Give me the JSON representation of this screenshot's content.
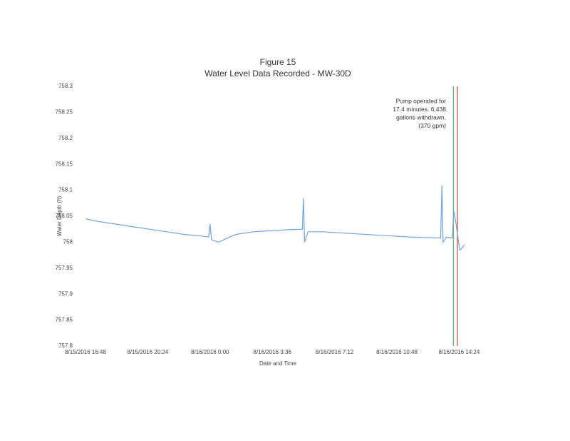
{
  "chart_data": {
    "type": "line",
    "title": "Figure 15",
    "subtitle": "Water Level Data Recorded - MW-30D",
    "x_label": "Date and Time",
    "y_label": "Water Depth (ft)",
    "annotation": [
      "Pump operated for",
      "17.4 minutes.  6,438",
      "gallons withdrawn.",
      "(370 gpm)"
    ],
    "x": [
      "8/15/2016 16:48",
      "8/15/2016 17:30",
      "8/15/2016 18:30",
      "8/15/2016 19:30",
      "8/15/2016 20:30",
      "8/15/2016 21:30",
      "8/15/2016 22:30",
      "8/15/2016 23:30",
      "8/15/2016 23:55",
      "8/16/2016 0:00",
      "8/16/2016 0:05",
      "8/16/2016 0:30",
      "8/16/2016 1:00",
      "8/16/2016 1:30",
      "8/16/2016 2:30",
      "8/16/2016 3:30",
      "8/16/2016 4:30",
      "8/16/2016 5:20",
      "8/16/2016 5:24",
      "8/16/2016 5:28",
      "8/16/2016 5:40",
      "8/16/2016 6:30",
      "8/16/2016 7:30",
      "8/16/2016 8:30",
      "8/16/2016 9:30",
      "8/16/2016 10:30",
      "8/16/2016 11:30",
      "8/16/2016 12:30",
      "8/16/2016 13:20",
      "8/16/2016 13:24",
      "8/16/2016 13:28",
      "8/16/2016 13:40",
      "8/16/2016 14:00",
      "8/16/2016 14:06",
      "8/16/2016 14:12",
      "8/16/2016 14:26",
      "8/16/2016 14:36",
      "8/16/2016 14:43"
    ],
    "series": [
      {
        "name": "Water Depth",
        "color": "#6fa3dc",
        "values": [
          758.045,
          758.04,
          758.035,
          758.03,
          758.025,
          758.02,
          758.015,
          758.012,
          758.01,
          758.035,
          758.005,
          758.0,
          758.008,
          758.015,
          758.02,
          758.022,
          758.024,
          758.025,
          758.085,
          758.0,
          758.02,
          758.02,
          758.018,
          758.016,
          758.014,
          758.012,
          758.01,
          758.009,
          758.008,
          758.11,
          758.0,
          758.01,
          758.008,
          758.06,
          758.04,
          757.985,
          757.99,
          757.995
        ]
      }
    ],
    "vlines": [
      {
        "x": "8/16/2016 14:04",
        "color": "#5cb85c"
      },
      {
        "x": "8/16/2016 14:18",
        "color": "#e0403a"
      }
    ],
    "xlim": [
      "8/15/2016 16:48",
      "8/16/2016 15:00"
    ],
    "xticks": [
      "8/15/2016 16:48",
      "8/15/2016 20:24",
      "8/16/2016 0:00",
      "8/16/2016 3:36",
      "8/16/2016 7:12",
      "8/16/2016 10:48",
      "8/16/2016 14:24"
    ],
    "ylim": [
      757.8,
      758.3
    ],
    "yticks": [
      757.8,
      757.85,
      757.9,
      757.95,
      758,
      758.05,
      758.1,
      758.15,
      758.2,
      758.25,
      758.3
    ],
    "grid": false
  }
}
